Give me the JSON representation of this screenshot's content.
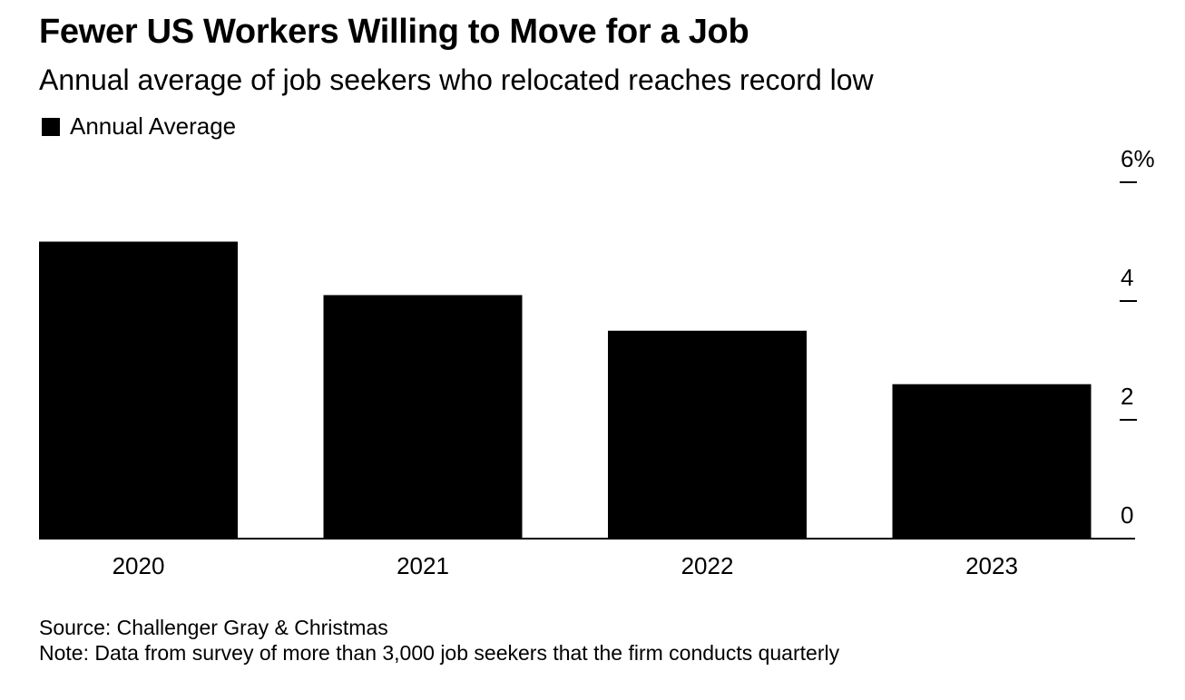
{
  "header": {
    "title": "Fewer US Workers Willing to Move for a Job",
    "subtitle": "Annual average of job seekers who relocated reaches record low"
  },
  "legend": {
    "label": "Annual Average",
    "color": "#000000"
  },
  "footer": {
    "source": "Source: Challenger Gray & Christmas",
    "note": "Note: Data from survey of more than 3,000 job seekers that the firm conducts quarterly"
  },
  "chart_data": {
    "type": "bar",
    "title": "Fewer US Workers Willing to Move for a Job",
    "subtitle": "Annual average of job seekers who relocated reaches record low",
    "categories": [
      "2020",
      "2021",
      "2022",
      "2023"
    ],
    "series": [
      {
        "name": "Annual Average",
        "values": [
          5.0,
          4.1,
          3.5,
          2.6
        ],
        "color": "#000000"
      }
    ],
    "xlabel": "",
    "ylabel": "",
    "ylim": [
      0,
      6
    ],
    "yticks": [
      0,
      2,
      4,
      6
    ],
    "ytick_labels": [
      "0",
      "2",
      "4",
      "6%"
    ],
    "y_axis_side": "right",
    "grid": false,
    "legend_position": "top-left"
  }
}
